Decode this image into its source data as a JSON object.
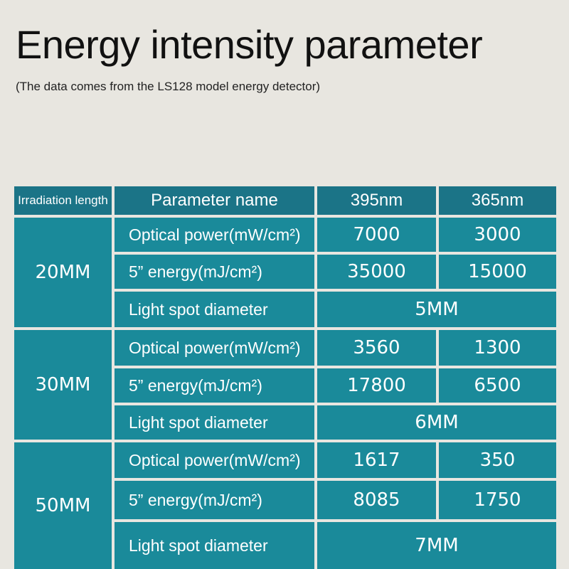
{
  "title": "Energy intensity parameter",
  "subtitle": "(The data comes from the LS128 model energy detector)",
  "table": {
    "headers": {
      "length": "Irradiation length",
      "name": "Parameter name",
      "col1": "395nm",
      "col2": "365nm"
    },
    "groups": [
      {
        "length": "20MM",
        "rows": [
          {
            "name": "Optical power(mW/cm²)",
            "v1": "7000",
            "v2": "3000"
          },
          {
            "name": "5” energy(mJ/cm²)",
            "v1": "35000",
            "v2": "15000"
          },
          {
            "name": "Light spot diameter",
            "span": "5MM"
          }
        ]
      },
      {
        "length": "30MM",
        "rows": [
          {
            "name": "Optical power(mW/cm²)",
            "v1": "3560",
            "v2": "1300"
          },
          {
            "name": "5” energy(mJ/cm²)",
            "v1": "17800",
            "v2": "6500"
          },
          {
            "name": "Light spot diameter",
            "span": "6MM"
          }
        ]
      },
      {
        "length": "50MM",
        "rows": [
          {
            "name": "Optical power(mW/cm²)",
            "v1": "1617",
            "v2": "350"
          },
          {
            "name": "5” energy(mJ/cm²)",
            "v1": "8085",
            "v2": "1750"
          },
          {
            "name": "Light spot diameter",
            "span": "7MM"
          }
        ]
      }
    ]
  },
  "colors": {
    "background": "#e8e6e0",
    "header_cell": "#1b7487",
    "body_cell": "#1a8a9a"
  }
}
